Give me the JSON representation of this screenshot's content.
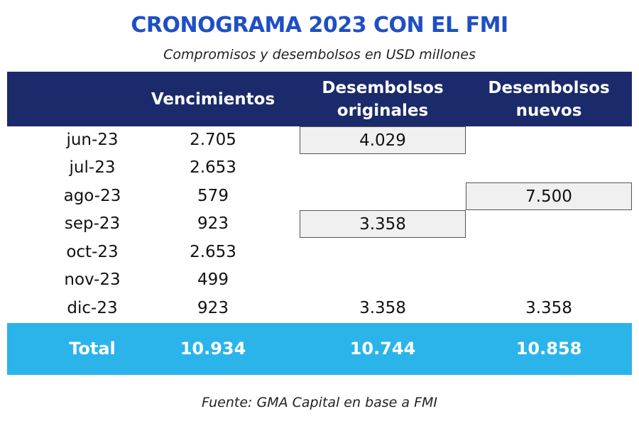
{
  "header": {
    "title": "CRONOGRAMA 2023 CON EL FMI",
    "subtitle": "Compromisos y desembolsos en USD millones"
  },
  "table": {
    "columns": [
      "Vencimientos",
      "Desembolsos originales",
      "Desembolsos nuevos"
    ],
    "rows": [
      {
        "label": "jun-23",
        "vencimientos": "2.705",
        "originales": {
          "text": "4.029",
          "boxed": true
        }
      },
      {
        "label": "jul-23",
        "vencimientos": "2.653"
      },
      {
        "label": "ago-23",
        "vencimientos": "579",
        "nuevos": {
          "text": "7.500",
          "boxed": true
        }
      },
      {
        "label": "sep-23",
        "vencimientos": "923",
        "originales": {
          "text": "3.358",
          "boxed": true
        }
      },
      {
        "label": "oct-23",
        "vencimientos": "2.653"
      },
      {
        "label": "nov-23",
        "vencimientos": "499"
      },
      {
        "label": "dic-23",
        "vencimientos": "923",
        "originales": "3.358",
        "nuevos": "3.358"
      }
    ],
    "total": {
      "label": "Total",
      "vencimientos": "10.934",
      "originales": "10.744",
      "nuevos": "10.858"
    }
  },
  "footer": {
    "source": "Fuente: GMA Capital en base a FMI"
  }
}
